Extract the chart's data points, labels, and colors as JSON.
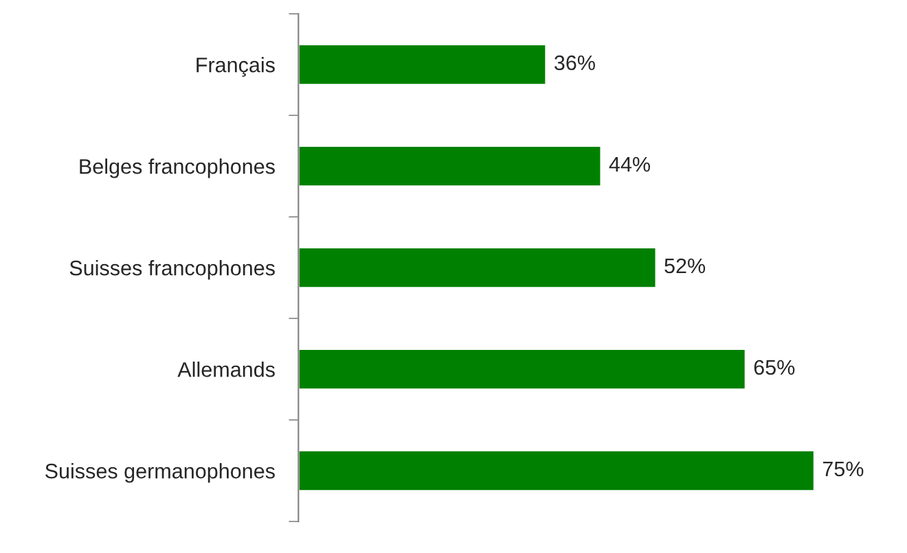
{
  "chart_data": {
    "type": "bar",
    "orientation": "horizontal",
    "categories": [
      "Français",
      "Belges francophones",
      "Suisses francophones",
      "Allemands",
      "Suisses germanophones"
    ],
    "values": [
      36,
      44,
      52,
      65,
      75
    ],
    "value_labels": [
      "36%",
      "44%",
      "52%",
      "65%",
      "75%"
    ],
    "color": "#008000",
    "grid": false,
    "legend": false
  }
}
